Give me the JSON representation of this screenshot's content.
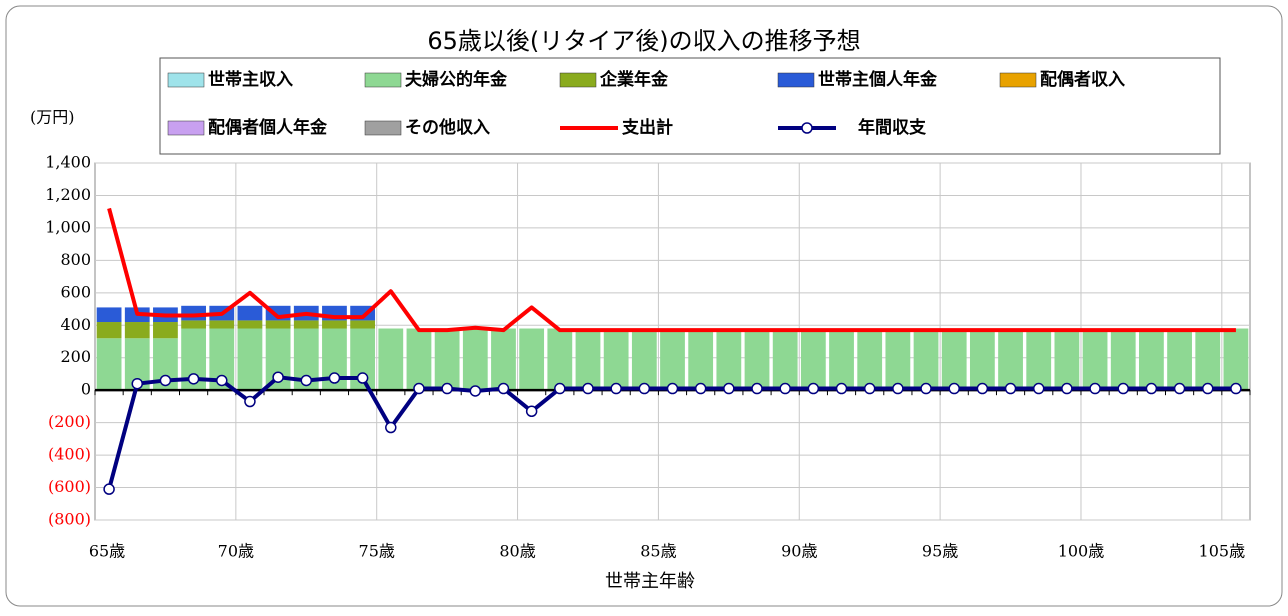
{
  "chart_data": {
    "type": "bar",
    "title": "65歳以後(リタイア後)の収入の推移予想",
    "y_unit": "(万円)",
    "x_label": "世帯主年齢",
    "categories": [
      "65歳",
      null,
      null,
      null,
      null,
      "70歳",
      null,
      null,
      null,
      null,
      "75歳",
      null,
      null,
      null,
      null,
      "80歳",
      null,
      null,
      null,
      null,
      "85歳",
      null,
      null,
      null,
      null,
      "90歳",
      null,
      null,
      null,
      null,
      "95歳",
      null,
      null,
      null,
      null,
      "100歳",
      null,
      null,
      null,
      null,
      "105歳"
    ],
    "stacked": true,
    "series": [
      {
        "name": "世帯主収入",
        "color": "#9fe3ea",
        "values": [
          0,
          0,
          0,
          0,
          0,
          0,
          0,
          0,
          0,
          0,
          0,
          0,
          0,
          0,
          0,
          0,
          0,
          0,
          0,
          0,
          0,
          0,
          0,
          0,
          0,
          0,
          0,
          0,
          0,
          0,
          0,
          0,
          0,
          0,
          0,
          0,
          0,
          0,
          0,
          0,
          0
        ]
      },
      {
        "name": "夫婦公的年金",
        "color": "#8ed893",
        "values": [
          320,
          320,
          320,
          380,
          380,
          380,
          380,
          380,
          380,
          380,
          380,
          380,
          380,
          380,
          380,
          380,
          380,
          380,
          380,
          380,
          380,
          380,
          380,
          380,
          380,
          380,
          380,
          380,
          380,
          380,
          380,
          380,
          380,
          380,
          380,
          380,
          380,
          380,
          380,
          380,
          380
        ]
      },
      {
        "name": "企業年金",
        "color": "#8aab1e",
        "values": [
          100,
          100,
          100,
          50,
          50,
          50,
          50,
          50,
          50,
          50,
          0,
          0,
          0,
          0,
          0,
          0,
          0,
          0,
          0,
          0,
          0,
          0,
          0,
          0,
          0,
          0,
          0,
          0,
          0,
          0,
          0,
          0,
          0,
          0,
          0,
          0,
          0,
          0,
          0,
          0,
          0
        ]
      },
      {
        "name": "世帯主個人年金",
        "color": "#2a5bd7",
        "values": [
          90,
          90,
          90,
          90,
          90,
          90,
          90,
          90,
          90,
          90,
          0,
          0,
          0,
          0,
          0,
          0,
          0,
          0,
          0,
          0,
          0,
          0,
          0,
          0,
          0,
          0,
          0,
          0,
          0,
          0,
          0,
          0,
          0,
          0,
          0,
          0,
          0,
          0,
          0,
          0,
          0
        ]
      },
      {
        "name": "配偶者収入",
        "color": "#e8a200",
        "values": [
          0,
          0,
          0,
          0,
          0,
          0,
          0,
          0,
          0,
          0,
          0,
          0,
          0,
          0,
          0,
          0,
          0,
          0,
          0,
          0,
          0,
          0,
          0,
          0,
          0,
          0,
          0,
          0,
          0,
          0,
          0,
          0,
          0,
          0,
          0,
          0,
          0,
          0,
          0,
          0,
          0
        ]
      },
      {
        "name": "配偶者個人年金",
        "color": "#c8a0f0",
        "values": [
          0,
          0,
          0,
          0,
          0,
          0,
          0,
          0,
          0,
          0,
          0,
          0,
          0,
          0,
          0,
          0,
          0,
          0,
          0,
          0,
          0,
          0,
          0,
          0,
          0,
          0,
          0,
          0,
          0,
          0,
          0,
          0,
          0,
          0,
          0,
          0,
          0,
          0,
          0,
          0,
          0
        ]
      },
      {
        "name": "その他収入",
        "color": "#a0a0a0",
        "values": [
          0,
          0,
          0,
          0,
          0,
          0,
          0,
          0,
          0,
          0,
          0,
          0,
          0,
          0,
          0,
          0,
          0,
          0,
          0,
          0,
          0,
          0,
          0,
          0,
          0,
          0,
          0,
          0,
          0,
          0,
          0,
          0,
          0,
          0,
          0,
          0,
          0,
          0,
          0,
          0,
          0
        ]
      },
      {
        "name": "支出計",
        "type": "line",
        "color": "#ff0000",
        "values": [
          1120,
          470,
          460,
          460,
          470,
          600,
          450,
          470,
          450,
          450,
          610,
          370,
          370,
          385,
          370,
          510,
          370,
          370,
          370,
          370,
          370,
          370,
          370,
          370,
          370,
          370,
          370,
          370,
          370,
          370,
          370,
          370,
          370,
          370,
          370,
          370,
          370,
          370,
          370,
          370,
          370
        ]
      },
      {
        "name": "年間収支",
        "type": "line",
        "markers": true,
        "color": "#000080",
        "values": [
          -610,
          40,
          60,
          70,
          60,
          -70,
          80,
          60,
          75,
          75,
          -230,
          10,
          10,
          -5,
          10,
          -130,
          10,
          10,
          10,
          10,
          10,
          10,
          10,
          10,
          10,
          10,
          10,
          10,
          10,
          10,
          10,
          10,
          10,
          10,
          10,
          10,
          10,
          10,
          10,
          10,
          10
        ]
      }
    ],
    "ylim": [
      -800,
      1400
    ],
    "yticks": [
      {
        "value": -800,
        "label": "(800)"
      },
      {
        "value": -600,
        "label": "(600)"
      },
      {
        "value": -400,
        "label": "(400)"
      },
      {
        "value": -200,
        "label": "(200)"
      },
      0,
      200,
      400,
      600,
      800,
      {
        "value": 1000,
        "label": "1,000"
      },
      {
        "value": 1200,
        "label": "1,200"
      },
      {
        "value": 1400,
        "label": "1,400"
      }
    ],
    "negative_label_color": "#ff0000",
    "grid": true
  }
}
